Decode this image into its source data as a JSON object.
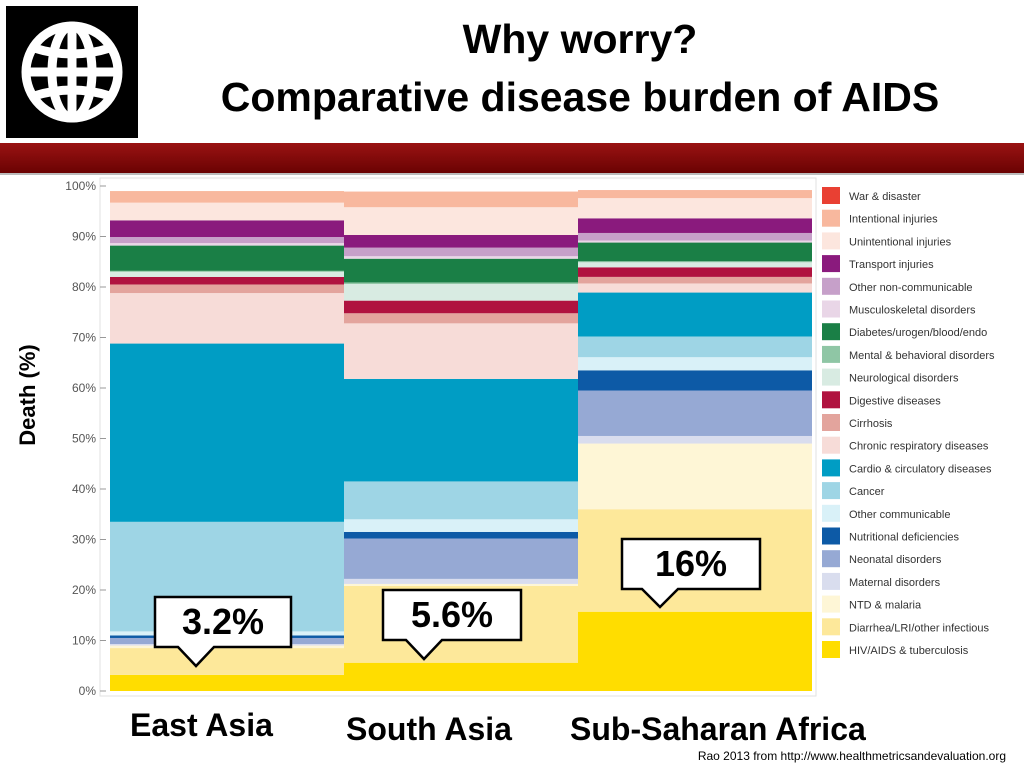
{
  "header": {
    "title_line1": "Why worry?",
    "title_line2": "Comparative disease burden of AIDS",
    "logo_icon": "globe-icon"
  },
  "footer": {
    "source": "Rao 2013 from http://www.healthmetricsandevaluation.org"
  },
  "chart_data": {
    "type": "bar",
    "stacked": true,
    "ylabel": "Death (%)",
    "ylim": [
      0,
      100
    ],
    "yticks": [
      "0%",
      "10%",
      "20%",
      "30%",
      "40%",
      "50%",
      "60%",
      "70%",
      "80%",
      "90%",
      "100%"
    ],
    "categories": [
      "East Asia",
      "South Asia",
      "Sub-Saharan Africa"
    ],
    "callouts": [
      "3.2%",
      "5.6%",
      "16%"
    ],
    "legend_position": "right",
    "series": [
      {
        "name": "HIV/AIDS & tuberculosis",
        "color": "#ffdd00",
        "values": [
          3.2,
          5.6,
          15.7
        ]
      },
      {
        "name": "Diarrhea/LRI/other infectious",
        "color": "#fde89a",
        "values": [
          5.3,
          15.2,
          20.3
        ]
      },
      {
        "name": "NTD & malaria",
        "color": "#fef6d6",
        "values": [
          0.5,
          0.4,
          13.0
        ]
      },
      {
        "name": "Maternal disorders",
        "color": "#d9ddee",
        "values": [
          0.3,
          1.0,
          1.5
        ]
      },
      {
        "name": "Neonatal disorders",
        "color": "#96a9d4",
        "values": [
          1.2,
          8.0,
          9.0
        ]
      },
      {
        "name": "Nutritional deficiencies",
        "color": "#0d5aa6",
        "values": [
          0.5,
          1.3,
          4.0
        ]
      },
      {
        "name": "Other communicable",
        "color": "#d9f1f8",
        "values": [
          0.8,
          2.5,
          2.6
        ]
      },
      {
        "name": "Cancer",
        "color": "#9ed5e5",
        "values": [
          21.7,
          7.5,
          4.1
        ]
      },
      {
        "name": "Cardio & circulatory diseases",
        "color": "#009dc4",
        "values": [
          35.3,
          20.3,
          8.7
        ]
      },
      {
        "name": "Chronic respiratory diseases",
        "color": "#f7dcd8",
        "values": [
          10.0,
          11.0,
          1.8
        ]
      },
      {
        "name": "Cirrhosis",
        "color": "#e3a49d",
        "values": [
          1.7,
          2.0,
          1.3
        ]
      },
      {
        "name": "Digestive diseases",
        "color": "#b0123f",
        "values": [
          1.5,
          2.5,
          1.9
        ]
      },
      {
        "name": "Neurological disorders",
        "color": "#d8ebe2",
        "values": [
          1.0,
          3.3,
          1.0
        ]
      },
      {
        "name": "Mental & behavioral disorders",
        "color": "#8fc6a5",
        "values": [
          0.2,
          0.3,
          0.2
        ]
      },
      {
        "name": "Diabetes/urogen/blood/endo",
        "color": "#1a7f46",
        "values": [
          5.0,
          4.7,
          3.7
        ]
      },
      {
        "name": "Musculoskeletal disorders",
        "color": "#e9d6e7",
        "values": [
          0.5,
          0.5,
          0.4
        ]
      },
      {
        "name": "Other non-communicable",
        "color": "#c6a0c9",
        "values": [
          1.2,
          1.7,
          1.5
        ]
      },
      {
        "name": "Transport injuries",
        "color": "#8a1a7d",
        "values": [
          3.3,
          2.5,
          2.9
        ]
      },
      {
        "name": "Unintentional injuries",
        "color": "#fce6de",
        "values": [
          3.5,
          5.5,
          4.0
        ]
      },
      {
        "name": "Intentional injuries",
        "color": "#f8b89e",
        "values": [
          2.3,
          3.1,
          1.6
        ]
      },
      {
        "name": "War & disaster",
        "color": "#e94033",
        "values": [
          0.0,
          0.0,
          0.0
        ]
      }
    ]
  }
}
